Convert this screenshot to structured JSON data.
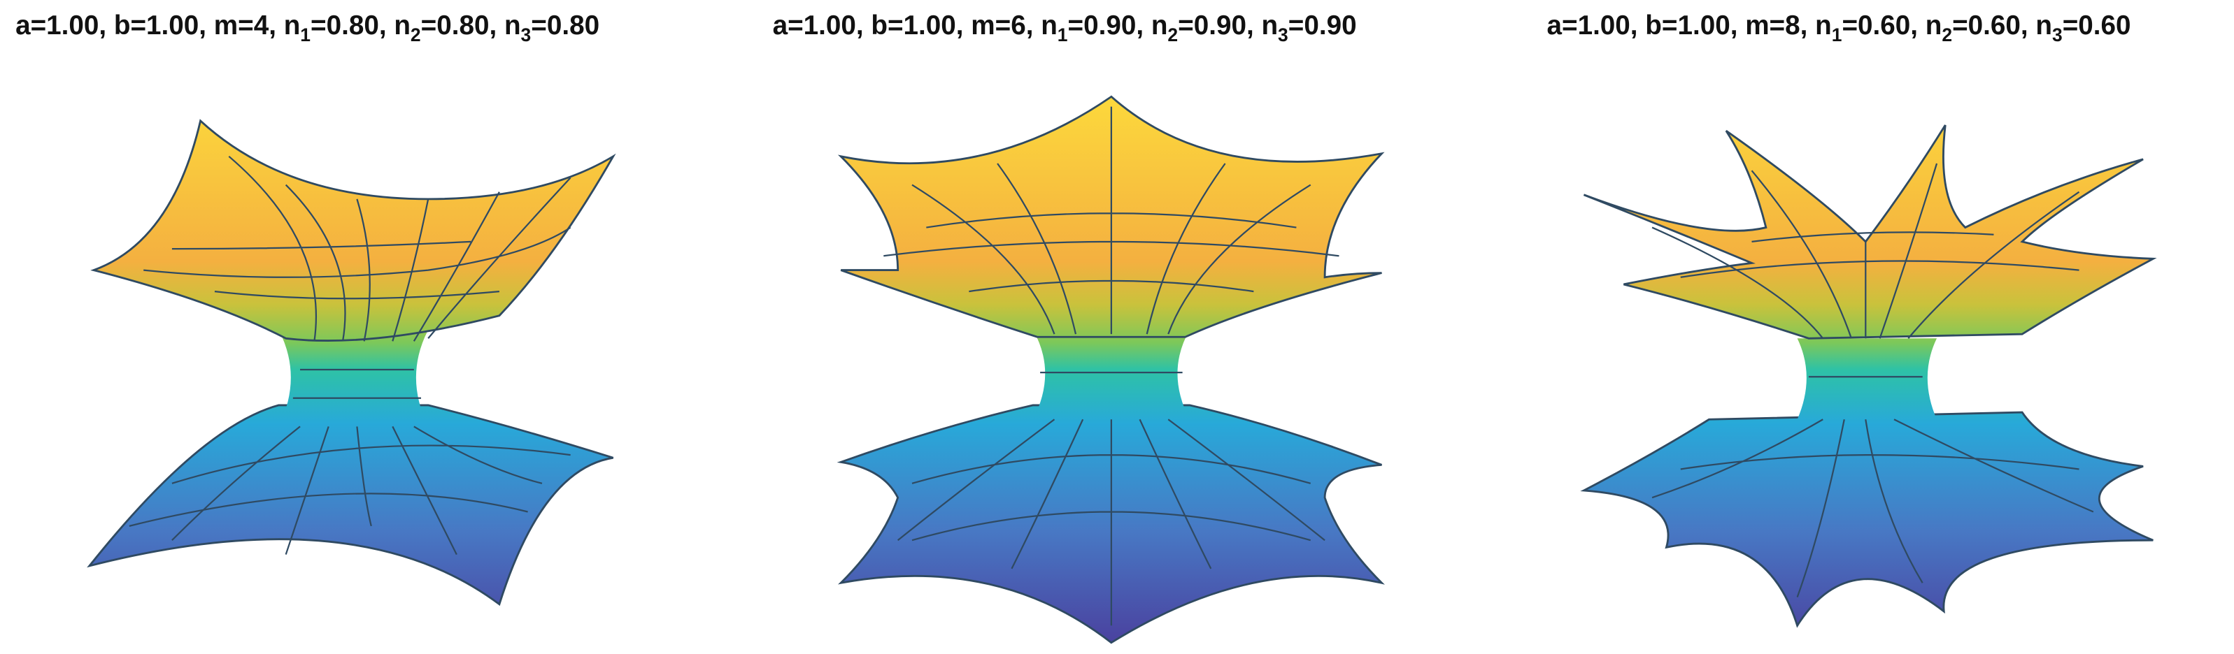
{
  "panels": [
    {
      "title": [
        "a=1.00, b=1.00, m=4, n",
        "1",
        "=0.80, n",
        "2",
        "=0.80, n",
        "3",
        "=0.80"
      ]
    },
    {
      "title": [
        "a=1.00, b=1.00, m=6, n",
        "1",
        "=0.90, n",
        "2",
        "=0.90, n",
        "3",
        "=0.90"
      ]
    },
    {
      "title": [
        "a=1.00, b=1.00, m=8, n",
        "1",
        "=0.60, n",
        "2",
        "=0.60, n",
        "3",
        "=0.60"
      ]
    }
  ]
}
